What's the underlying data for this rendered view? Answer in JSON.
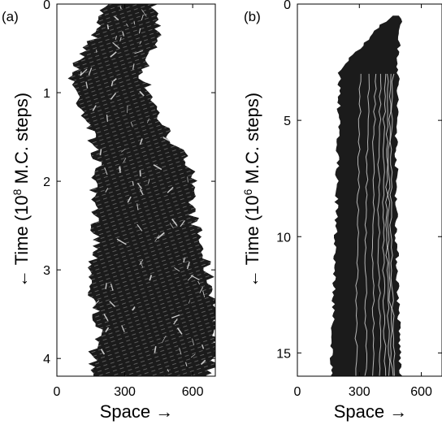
{
  "chart_data": [
    {
      "panel_label": "(a)",
      "type": "heatmap",
      "description_values": "space-time diagram (dark = occupied)",
      "xlabel": "Space →",
      "ylabel": "← Time (10^8 M.C. steps)",
      "ylabel_parts": {
        "prefix": "← Time (10",
        "exponent": "8",
        "suffix": " M.C. steps)"
      },
      "xlim": [
        0,
        700
      ],
      "ylim": [
        0,
        4.2
      ],
      "y_inverted": true,
      "xticks": [
        0,
        300,
        600
      ],
      "yticks": [
        0,
        1,
        2,
        3,
        4
      ],
      "xtick_labels": [
        "0",
        "300",
        "600"
      ],
      "ytick_labels": [
        "0",
        "1",
        "2",
        "3",
        "4"
      ],
      "boundary_left": [
        [
          0,
          230
        ],
        [
          0.3,
          210
        ],
        [
          0.6,
          130
        ],
        [
          0.8,
          90
        ],
        [
          1.0,
          110
        ],
        [
          1.3,
          160
        ],
        [
          1.6,
          190
        ],
        [
          1.9,
          205
        ],
        [
          2.1,
          175
        ],
        [
          2.4,
          190
        ],
        [
          2.7,
          205
        ],
        [
          3.0,
          180
        ],
        [
          3.3,
          175
        ],
        [
          3.6,
          210
        ],
        [
          3.9,
          190
        ],
        [
          4.2,
          170
        ]
      ],
      "boundary_right": [
        [
          0,
          400
        ],
        [
          0.3,
          430
        ],
        [
          0.6,
          380
        ],
        [
          0.8,
          350
        ],
        [
          1.0,
          390
        ],
        [
          1.3,
          430
        ],
        [
          1.6,
          500
        ],
        [
          1.9,
          590
        ],
        [
          2.1,
          560
        ],
        [
          2.4,
          580
        ],
        [
          2.7,
          610
        ],
        [
          3.0,
          640
        ],
        [
          3.3,
          670
        ],
        [
          3.6,
          690
        ],
        [
          3.9,
          680
        ],
        [
          4.2,
          650
        ]
      ],
      "color": "#1b1b1b"
    },
    {
      "panel_label": "(b)",
      "type": "heatmap",
      "description_values": "space-time diagram (dark = occupied)",
      "xlabel": "Space →",
      "ylabel": "← Time (10^6 M.C. steps)",
      "ylabel_parts": {
        "prefix": "← Time (10",
        "exponent": "6",
        "suffix": " M.C. steps)"
      },
      "xlim": [
        0,
        700
      ],
      "ylim": [
        0,
        16
      ],
      "y_inverted": true,
      "xticks": [
        0,
        300,
        600
      ],
      "yticks": [
        0,
        5,
        10,
        15
      ],
      "xtick_labels": [
        "0",
        "300",
        "600"
      ],
      "ytick_labels": [
        "0",
        "5",
        "10",
        "15"
      ],
      "boundary_left": [
        [
          0.5,
          470
        ],
        [
          1.0,
          400
        ],
        [
          2.0,
          300
        ],
        [
          2.8,
          215
        ],
        [
          6.0,
          205
        ],
        [
          10.0,
          195
        ],
        [
          14.0,
          180
        ],
        [
          16.0,
          170
        ]
      ],
      "boundary_right": [
        [
          0.5,
          490
        ],
        [
          2.0,
          480
        ],
        [
          6.0,
          470
        ],
        [
          10.0,
          470
        ],
        [
          13.0,
          480
        ],
        [
          16.0,
          490
        ]
      ],
      "color": "#1b1b1b"
    }
  ]
}
